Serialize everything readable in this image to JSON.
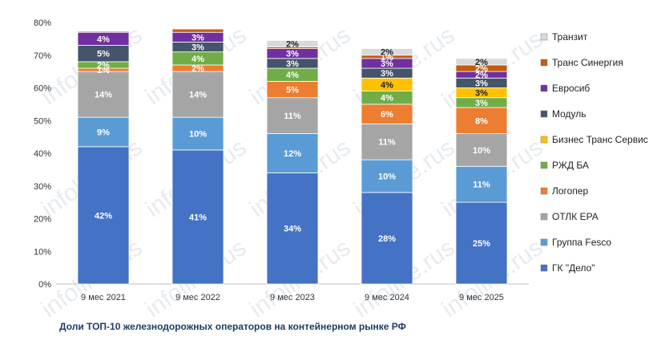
{
  "caption": "Доли ТОП-10 железнодорожных операторов на контейнерном рынке РФ",
  "watermark": "infoline.rus",
  "chart_data": {
    "type": "bar",
    "stacked": true,
    "categories": [
      "9 мес 2021",
      "9 мес 2022",
      "9 мес 2023",
      "9 мес 2024",
      "9 мес 2025"
    ],
    "ylim": [
      0,
      80
    ],
    "yticks": [
      0,
      10,
      20,
      30,
      40,
      50,
      60,
      70,
      80
    ],
    "ytick_labels": [
      "0%",
      "10%",
      "20%",
      "30%",
      "40%",
      "50%",
      "60%",
      "70%",
      "80%"
    ],
    "grid": false,
    "legend": "right",
    "series": [
      {
        "name": "ГК \"Дело\"",
        "color": "#4472c4",
        "values": [
          42,
          41,
          34,
          28,
          25
        ],
        "labels": [
          "42%",
          "41%",
          "34%",
          "28%",
          "25%"
        ]
      },
      {
        "name": "Группа Fesco",
        "color": "#5b9bd5",
        "values": [
          9,
          10,
          12,
          10,
          11
        ],
        "labels": [
          "9%",
          "10%",
          "12%",
          "10%",
          "11%"
        ]
      },
      {
        "name": "ОТЛК ЕРА",
        "color": "#a5a5a5",
        "values": [
          14,
          14,
          11,
          11,
          10
        ],
        "labels": [
          "14%",
          "14%",
          "11%",
          "11%",
          "10%"
        ]
      },
      {
        "name": "Логопер",
        "color": "#ed7d31",
        "values": [
          1,
          2,
          5,
          6,
          8
        ],
        "labels": [
          "1%",
          "2%",
          "5%",
          "6%",
          "8%"
        ]
      },
      {
        "name": "РЖД БА",
        "color": "#70ad47",
        "values": [
          2,
          4,
          4,
          4,
          3
        ],
        "labels": [
          "2%",
          "4%",
          "4%",
          "4%",
          "3%"
        ]
      },
      {
        "name": "Бизнес Транс Сервис",
        "color": "#ffc000",
        "values": [
          0,
          0,
          0,
          4,
          3
        ],
        "labels": [
          "",
          "",
          "",
          "4%",
          "3%"
        ]
      },
      {
        "name": "Модуль",
        "color": "#44546a",
        "values": [
          5,
          3,
          3,
          3,
          3
        ],
        "labels": [
          "5%",
          "3%",
          "3%",
          "3%",
          "3%"
        ]
      },
      {
        "name": "Евросиб",
        "color": "#7030a0",
        "values": [
          4,
          3,
          3,
          3,
          2
        ],
        "labels": [
          "4%",
          "3%",
          "3%",
          "3%",
          "2%"
        ]
      },
      {
        "name": "Транс Синергия",
        "color": "#c55a11",
        "values": [
          0.3,
          1,
          0.5,
          1,
          2
        ],
        "labels": [
          "",
          "",
          "",
          "1%",
          "2%"
        ]
      },
      {
        "name": "Транзит",
        "color": "#d9d9d9",
        "values": [
          0,
          0,
          2,
          2,
          2
        ],
        "labels": [
          "",
          "",
          "2%",
          "2%",
          "2%"
        ]
      }
    ]
  }
}
